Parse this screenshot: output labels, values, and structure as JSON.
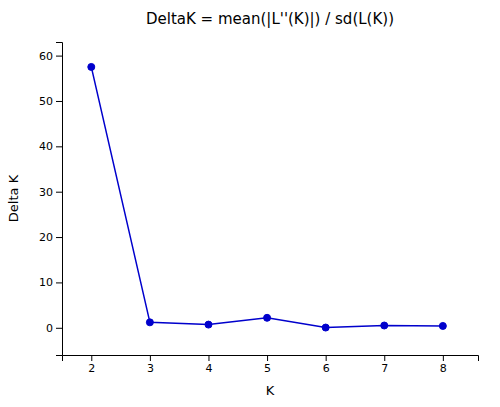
{
  "chart_data": {
    "type": "line",
    "title": "DeltaK = mean(|L''(K)|) / sd(L(K))",
    "xlabel": "K",
    "ylabel": "Delta K",
    "x": [
      2,
      3,
      4,
      5,
      6,
      7,
      8
    ],
    "values": [
      57.5,
      1.2,
      0.7,
      2.2,
      0.05,
      0.5,
      0.4
    ],
    "color": "#0000cc",
    "marker": "circle",
    "xlim": [
      1.5,
      8.6
    ],
    "xticks": [
      2,
      3,
      4,
      5,
      6,
      7,
      8
    ],
    "ylim": [
      -6,
      63
    ],
    "yticks": [
      0,
      10,
      20,
      30,
      40,
      50,
      60
    ],
    "grid": false
  }
}
